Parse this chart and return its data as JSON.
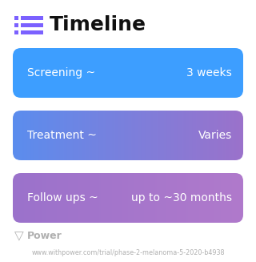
{
  "title": "Timeline",
  "background_color": "#ffffff",
  "bars": [
    {
      "label_left": "Screening ~",
      "label_right": "3 weeks",
      "color_left": "#3d9eff",
      "color_right": "#3d9eff"
    },
    {
      "label_left": "Treatment ~",
      "label_right": "Varies",
      "color_left": "#5b8dee",
      "color_right": "#9b72cb"
    },
    {
      "label_left": "Follow ups ~",
      "label_right": "up to ~30 months",
      "color_left": "#9b72cb",
      "color_right": "#b07acc"
    }
  ],
  "footer_logo_text": "Power",
  "footer_url": "www.withpower.com/trial/phase-2-melanoma-5-2020-b4938",
  "footer_color": "#b0b0b0",
  "title_fontsize": 18,
  "bar_fontsize": 10,
  "footer_fontsize": 5.8,
  "icon_color": "#7b61ff",
  "icon_line_color": "#7b61ff"
}
